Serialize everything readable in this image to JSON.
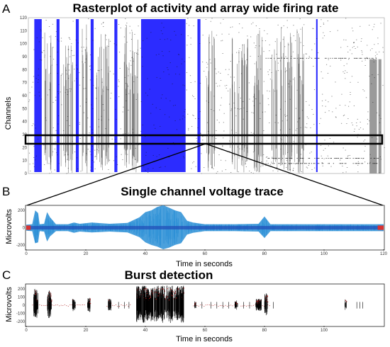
{
  "colors": {
    "raster_blue": "#1a1aff",
    "raster_black": "#111111",
    "raster_gray": "#888888",
    "trace_fill": "#2b8fd6",
    "trace_band": "#224fb8",
    "trace_red": "#d93232",
    "burst_black": "#000000",
    "burst_red": "#b22222"
  },
  "chart_data": [
    {
      "panel": "A",
      "type": "scatter",
      "title": "Rasterplot of activity and array wide firing rate",
      "xlabel": "",
      "ylabel": "Channels",
      "ylim": [
        0,
        120
      ],
      "yticks": [
        0,
        10,
        20,
        30,
        40,
        50,
        60,
        70,
        80,
        90,
        100,
        110,
        120
      ],
      "xlim": [
        0,
        120
      ],
      "highlight_channel_band": [
        25,
        33
      ],
      "blue_burst_blocks": [
        [
          2,
          4.5
        ],
        [
          9.5,
          10.5
        ],
        [
          16,
          17
        ],
        [
          21,
          22
        ],
        [
          29,
          30
        ],
        [
          38,
          53
        ],
        [
          57,
          58
        ],
        [
          97,
          97.5
        ]
      ],
      "dense_black_windows": [
        [
          5,
          8
        ],
        [
          11,
          15
        ],
        [
          18,
          20
        ],
        [
          23,
          28
        ],
        [
          31,
          37
        ],
        [
          60,
          63
        ],
        [
          68,
          74
        ],
        [
          76,
          80
        ],
        [
          82,
          84
        ],
        [
          85,
          93
        ]
      ],
      "gray_columns": [
        [
          115,
          117.5
        ],
        [
          118,
          119
        ]
      ]
    },
    {
      "panel": "B",
      "type": "area",
      "title": "Single channel voltage trace",
      "xlabel": "Time in seconds",
      "ylabel": "Microvolts",
      "xlim": [
        0,
        120
      ],
      "ylim": [
        -250,
        250
      ],
      "xticks": [
        0,
        20,
        40,
        60,
        80,
        100,
        120
      ],
      "yticks": [
        200,
        0,
        -200
      ],
      "envelope": {
        "x": [
          0,
          2,
          3,
          4,
          4.5,
          6,
          7,
          8,
          10,
          14,
          16,
          18,
          22,
          28,
          34,
          38,
          40,
          42,
          44,
          46,
          48,
          50,
          52,
          54,
          56,
          60,
          70,
          78,
          80,
          82,
          90,
          100,
          110,
          120
        ],
        "upper": [
          35,
          40,
          200,
          170,
          40,
          45,
          180,
          120,
          40,
          40,
          60,
          45,
          60,
          45,
          55,
          120,
          180,
          200,
          240,
          260,
          230,
          200,
          180,
          80,
          60,
          40,
          40,
          45,
          130,
          40,
          40,
          40,
          40,
          40
        ],
        "lower": [
          -35,
          -40,
          -180,
          -170,
          -40,
          -45,
          -160,
          -100,
          -40,
          -40,
          -60,
          -45,
          -55,
          -45,
          -55,
          -110,
          -170,
          -200,
          -220,
          -250,
          -230,
          -200,
          -180,
          -80,
          -60,
          -40,
          -40,
          -45,
          -120,
          -40,
          -40,
          -40,
          -40,
          -40
        ]
      }
    },
    {
      "panel": "C",
      "type": "line",
      "title": "Burst detection",
      "xlabel": "Time in seconds",
      "ylabel": "Microvolts",
      "xlim": [
        0,
        120
      ],
      "ylim": [
        -250,
        250
      ],
      "xticks": [
        0,
        20,
        40,
        60,
        80,
        100
      ],
      "yticks": [
        200,
        100,
        0,
        -100,
        -200
      ],
      "burst_segments": [
        {
          "x0": 2.5,
          "x1": 4.0,
          "amp": 200
        },
        {
          "x0": 7.0,
          "x1": 8.5,
          "amp": 180
        },
        {
          "x0": 15.5,
          "x1": 16.5,
          "amp": 80
        },
        {
          "x0": 20.5,
          "x1": 21.5,
          "amp": 90
        },
        {
          "x0": 27.5,
          "x1": 28.5,
          "amp": 80
        },
        {
          "x0": 37.0,
          "x1": 53.0,
          "amp": 240
        },
        {
          "x0": 56.5,
          "x1": 57.0,
          "amp": 50
        },
        {
          "x0": 70.0,
          "x1": 71.0,
          "amp": 60
        },
        {
          "x0": 77.0,
          "x1": 79.0,
          "amp": 80
        },
        {
          "x0": 80.0,
          "x1": 81.0,
          "amp": 150
        },
        {
          "x0": 107.0,
          "x1": 107.5,
          "amp": 70
        }
      ],
      "isolated_spikes_x": [
        31,
        33,
        34.5,
        59,
        62,
        64,
        66,
        68,
        73,
        75,
        83,
        111,
        112,
        113
      ]
    }
  ]
}
